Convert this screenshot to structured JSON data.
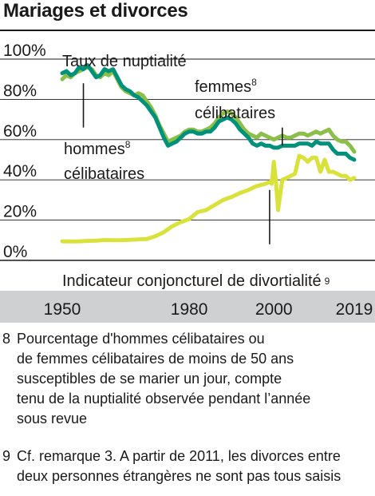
{
  "title": "Mariages et divorces",
  "chart_data": {
    "type": "line",
    "xlim": [
      1950,
      2019
    ],
    "ylim": [
      0,
      100
    ],
    "y_ticks": [
      "100%",
      "80%",
      "60%",
      "40%",
      "20%",
      "0%"
    ],
    "y_tick_values": [
      100,
      80,
      60,
      40,
      20,
      0
    ],
    "x_ticks": [
      "1950",
      "1980",
      "2000",
      "2019"
    ],
    "x_tick_values": [
      1950,
      1980,
      2000,
      2019
    ],
    "grid": true,
    "annotations": {
      "taux": "Taux de nuptialité",
      "femmes_line1": "femmes",
      "femmes_line1_sup": "8",
      "femmes_line2": "célibataires",
      "hommes_line1": "hommes",
      "hommes_line1_sup": "8",
      "hommes_line2": "célibataires",
      "divortialite": "Indicateur conjoncturel de divortialité",
      "divortialite_sup": "9"
    },
    "series": [
      {
        "key": "femmes",
        "color": "#8bbf4a",
        "x": [
          1950,
          1951,
          1952,
          1953,
          1954,
          1955,
          1956,
          1957,
          1958,
          1959,
          1960,
          1961,
          1962,
          1963,
          1964,
          1965,
          1966,
          1967,
          1968,
          1969,
          1970,
          1971,
          1972,
          1973,
          1974,
          1975,
          1976,
          1977,
          1978,
          1979,
          1980,
          1981,
          1982,
          1983,
          1984,
          1985,
          1986,
          1987,
          1988,
          1989,
          1990,
          1991,
          1992,
          1993,
          1994,
          1995,
          1996,
          1997,
          1998,
          1999,
          2000,
          2001,
          2002,
          2003,
          2004,
          2005,
          2006,
          2007,
          2008,
          2009,
          2010,
          2011,
          2012,
          2013,
          2014,
          2015,
          2016,
          2017,
          2018,
          2019
        ],
        "values": [
          90,
          92,
          91,
          93,
          94,
          95,
          96,
          95,
          92,
          91,
          93,
          92,
          94,
          90,
          86,
          84,
          83,
          82,
          83,
          82,
          79,
          76,
          72,
          67,
          63,
          59,
          60,
          61,
          62,
          64,
          65,
          65,
          64,
          64,
          65,
          66,
          68,
          71,
          73,
          74,
          73,
          71,
          68,
          65,
          63,
          62,
          61,
          63,
          62,
          61,
          60,
          61,
          62,
          61,
          61,
          62,
          63,
          63,
          62,
          63,
          64,
          63,
          64,
          65,
          62,
          60,
          59,
          59,
          57,
          54
        ]
      },
      {
        "key": "hommes",
        "color": "#00917a",
        "x": [
          1950,
          1951,
          1952,
          1953,
          1954,
          1955,
          1956,
          1957,
          1958,
          1959,
          1960,
          1961,
          1962,
          1963,
          1964,
          1965,
          1966,
          1967,
          1968,
          1969,
          1970,
          1971,
          1972,
          1973,
          1974,
          1975,
          1976,
          1977,
          1978,
          1979,
          1980,
          1981,
          1982,
          1983,
          1984,
          1985,
          1986,
          1987,
          1988,
          1989,
          1990,
          1991,
          1992,
          1993,
          1994,
          1995,
          1996,
          1997,
          1998,
          1999,
          2000,
          2001,
          2002,
          2003,
          2004,
          2005,
          2006,
          2007,
          2008,
          2009,
          2010,
          2011,
          2012,
          2013,
          2014,
          2015,
          2016,
          2017,
          2018,
          2019
        ],
        "values": [
          93,
          94,
          92,
          93,
          96,
          95,
          97,
          94,
          91,
          92,
          95,
          94,
          95,
          91,
          87,
          85,
          84,
          82,
          81,
          79,
          77,
          74,
          71,
          66,
          61,
          57,
          58,
          59,
          61,
          63,
          64,
          64,
          63,
          63,
          64,
          64,
          66,
          69,
          70,
          71,
          70,
          68,
          65,
          63,
          61,
          58,
          57,
          58,
          57,
          57,
          56,
          56,
          57,
          57,
          57,
          57,
          58,
          58,
          58,
          57,
          59,
          58,
          58,
          58,
          55,
          53,
          53,
          53,
          51,
          50
        ]
      },
      {
        "key": "divortialite",
        "color": "#d9e23a",
        "x": [
          1950,
          1952,
          1954,
          1956,
          1958,
          1960,
          1962,
          1964,
          1966,
          1968,
          1970,
          1972,
          1974,
          1976,
          1978,
          1980,
          1982,
          1984,
          1986,
          1988,
          1990,
          1992,
          1994,
          1996,
          1998,
          1999,
          1999.5,
          2000,
          2000.5,
          2001,
          2002,
          2003,
          2004,
          2005,
          2006,
          2007,
          2008,
          2009,
          2010,
          2011,
          2012,
          2013,
          2014,
          2015,
          2016,
          2017,
          2018,
          2019
        ],
        "values": [
          9.5,
          9.4,
          9.5,
          9.7,
          9.8,
          10.1,
          10.0,
          10.0,
          10.2,
          10.4,
          10.6,
          12,
          14,
          17,
          19,
          20.5,
          24,
          25,
          27.5,
          30,
          31.5,
          33.5,
          35,
          37,
          38,
          39,
          38,
          49,
          39,
          25,
          40,
          41,
          42,
          43,
          52,
          51,
          49,
          51,
          51,
          44,
          50,
          44,
          44,
          43,
          42,
          42,
          40,
          41
        ]
      }
    ]
  },
  "footnotes": [
    {
      "num": "8",
      "lines": [
        "Pourcentage d'hommes célibataires ou",
        "de femmes célibataires de moins de 50 ans",
        "susceptibles de se marier un jour, compte",
        "tenu de la nuptialité observée pendant l’année",
        "sous revue"
      ]
    },
    {
      "num": "9",
      "lines": [
        "Cf. remarque 3. A partir de 2011, les divorces entre",
        "deux personnes étrangères ne sont pas tous saisis"
      ]
    }
  ]
}
